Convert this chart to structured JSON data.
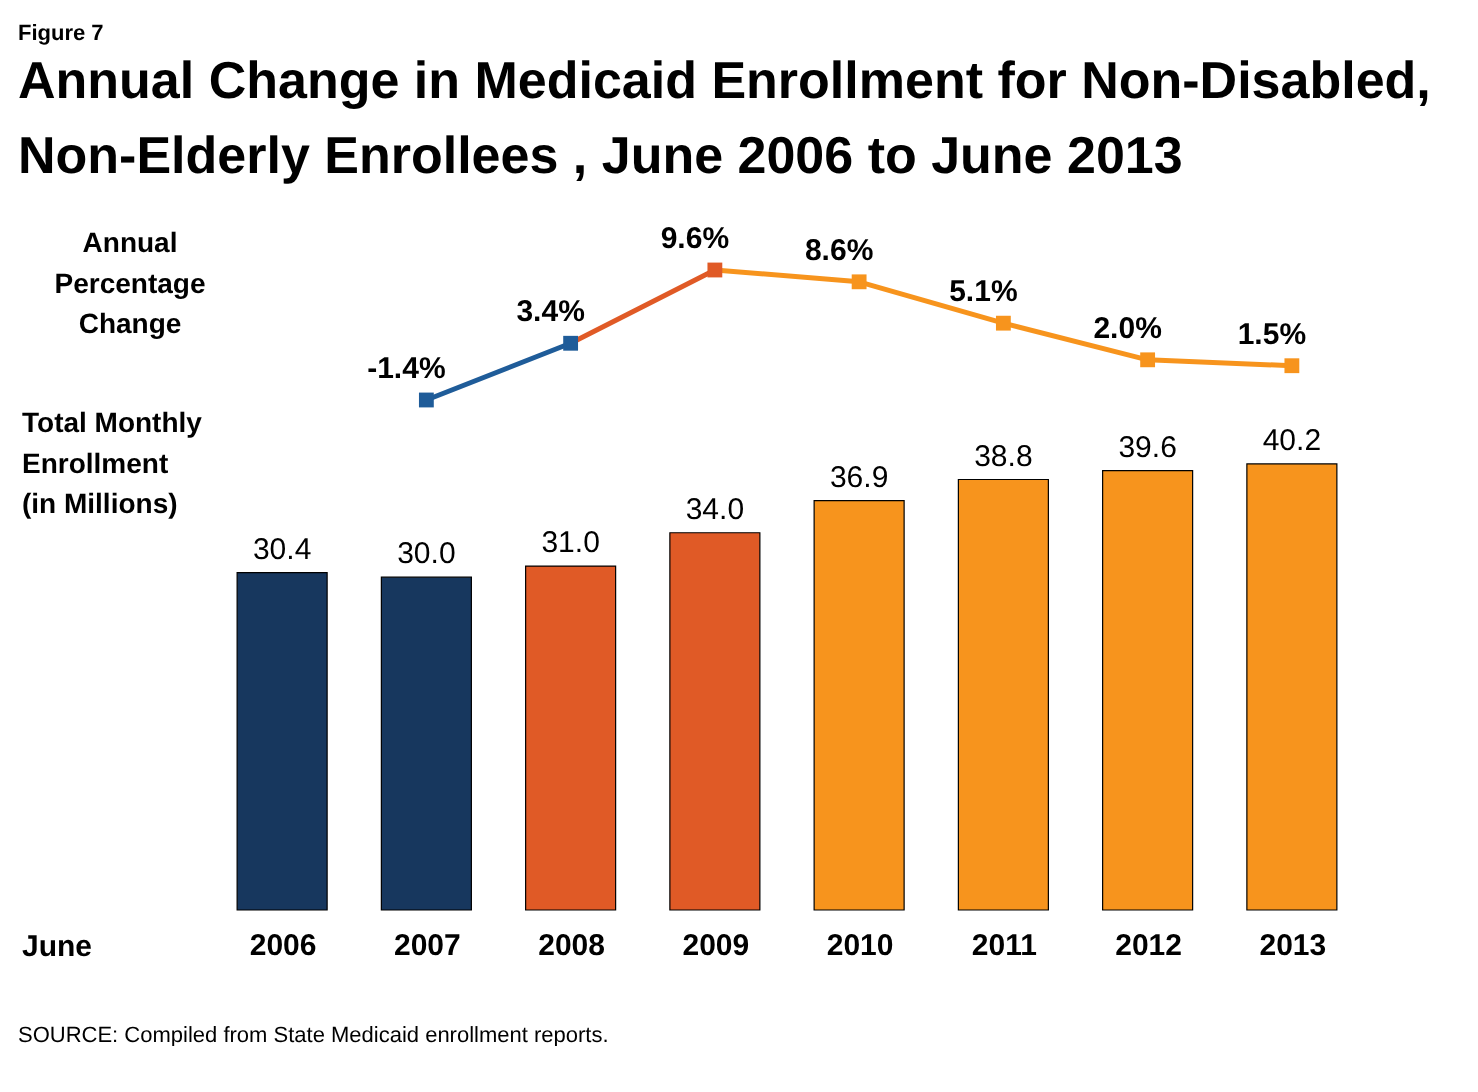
{
  "chart_data": [
    {
      "type": "line",
      "title": "Annual Change in Medicaid Enrollment for Non-Disabled, Non-Elderly Enrollees , June 2006 to June 2013",
      "ylabel": "Annual\nPercentage\nChange",
      "categories": [
        "2006",
        "2007",
        "2008",
        "2009",
        "2010",
        "2011",
        "2012",
        "2013"
      ],
      "series": [
        {
          "values": [
            null,
            -1.4,
            3.4,
            9.6,
            8.6,
            5.1,
            2.0,
            1.5
          ],
          "value_labels": [
            null,
            "-1.4%",
            "3.4%",
            "9.6%",
            "8.6%",
            "5.1%",
            "2.0%",
            "1.5%"
          ],
          "color": "#f7941d",
          "colors": [
            null,
            "#1f5c99",
            "#1f5c99",
            "#e05a26",
            null,
            null,
            null,
            null
          ]
        }
      ],
      "marker": "square",
      "data_labels": true,
      "tick_labels": false,
      "annotations": [
        "Figure 7"
      ]
    },
    {
      "type": "bar",
      "xlabel": "June",
      "ylabel": "Total Monthly\nEnrollment\n(in Millions)",
      "categories": [
        "2006",
        "2007",
        "2008",
        "2009",
        "2010",
        "2011",
        "2012",
        "2013"
      ],
      "series": [
        {
          "values": [
            30.4,
            30.0,
            31.0,
            34.0,
            36.9,
            38.8,
            39.6,
            40.2
          ],
          "value_labels": [
            "30.4",
            "30.0",
            "31.0",
            "34.0",
            "36.9",
            "38.8",
            "39.6",
            "40.2"
          ],
          "colors": [
            "#17375e",
            "#17375e",
            "#e05a26",
            "#e05a26",
            "#f7941d",
            "#f7941d",
            "#f7941d",
            "#f7941d"
          ]
        }
      ],
      "data_labels": true,
      "tick_labels": "x",
      "annotations": [
        "SOURCE: Compiled from State Medicaid enrollment reports."
      ]
    }
  ]
}
